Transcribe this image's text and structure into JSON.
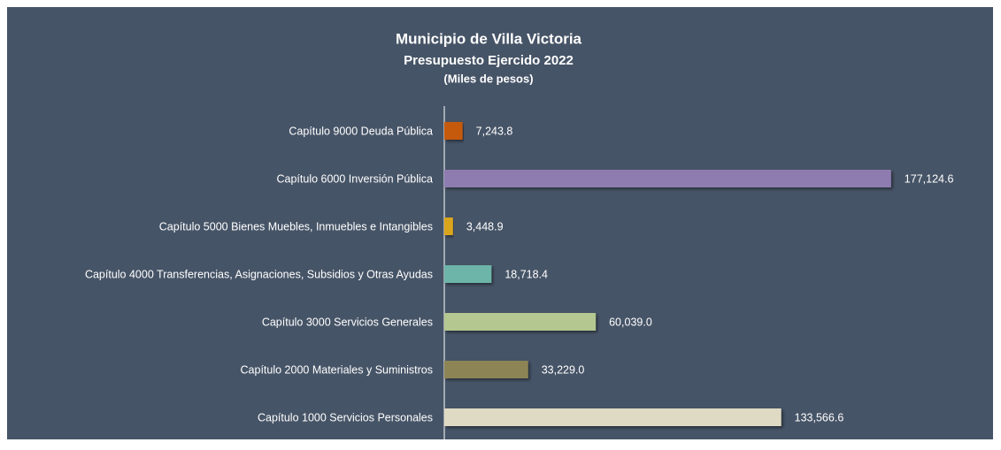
{
  "chart_data": {
    "type": "bar",
    "orientation": "horizontal",
    "title": "Municipio de Villa Victoria",
    "subtitle": "Presupuesto Ejercido 2022",
    "subtitle2": "(Miles de pesos)",
    "categories": [
      "Capítulo 9000 Deuda Pública",
      "Capítulo 6000 Inversión Pública",
      "Capítulo 5000 Bienes Muebles, Inmuebles e Intangibles",
      "Capítulo 4000 Transferencias, Asignaciones, Subsidios y Otras Ayudas",
      "Capítulo 3000 Servicios Generales",
      "Capítulo 2000 Materiales y Suministros",
      "Capítulo 1000 Servicios Personales"
    ],
    "values": [
      7243.8,
      177124.6,
      3448.9,
      18718.4,
      60039.0,
      33229.0,
      133566.6
    ],
    "value_labels": [
      "7,243.8",
      "177,124.6",
      "3,448.9",
      "18,718.4",
      "60,039.0",
      "33,229.0",
      "133,566.6"
    ],
    "colors": [
      "#c55a11",
      "#8e7bb1",
      "#d9a51b",
      "#6db5a9",
      "#b4c790",
      "#8c8455",
      "#dfdac3"
    ],
    "xlim": [
      0,
      200000
    ]
  }
}
